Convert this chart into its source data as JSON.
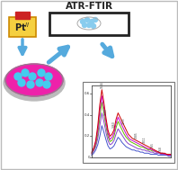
{
  "bg_color": "#ffffff",
  "title_text": "ATR-FTIR",
  "pt_box_color": "#f5d040",
  "arrow_color": "#55aadd",
  "dish_fill": "#ee22aa",
  "dish_edge": "#999999",
  "cell_color": "#44ccee",
  "spectra": {
    "lines": {
      "red": [
        0.05,
        0.09,
        0.16,
        0.3,
        0.5,
        0.64,
        0.52,
        0.38,
        0.26,
        0.2,
        0.22,
        0.26,
        0.36,
        0.42,
        0.38,
        0.34,
        0.3,
        0.26,
        0.22,
        0.2,
        0.18,
        0.17,
        0.16,
        0.15,
        0.14,
        0.13,
        0.12,
        0.11,
        0.1,
        0.09,
        0.08,
        0.07,
        0.06,
        0.05,
        0.04,
        0.04,
        0.04,
        0.03,
        0.03,
        0.03
      ],
      "magenta": [
        0.04,
        0.08,
        0.14,
        0.26,
        0.44,
        0.58,
        0.47,
        0.34,
        0.23,
        0.17,
        0.19,
        0.23,
        0.32,
        0.38,
        0.34,
        0.3,
        0.26,
        0.22,
        0.19,
        0.17,
        0.16,
        0.15,
        0.14,
        0.13,
        0.12,
        0.11,
        0.1,
        0.09,
        0.08,
        0.08,
        0.07,
        0.06,
        0.05,
        0.05,
        0.04,
        0.04,
        0.03,
        0.03,
        0.02,
        0.02
      ],
      "green": [
        0.04,
        0.07,
        0.12,
        0.22,
        0.38,
        0.52,
        0.42,
        0.3,
        0.2,
        0.15,
        0.16,
        0.2,
        0.28,
        0.34,
        0.3,
        0.26,
        0.22,
        0.19,
        0.17,
        0.15,
        0.14,
        0.13,
        0.12,
        0.11,
        0.1,
        0.1,
        0.09,
        0.08,
        0.07,
        0.07,
        0.06,
        0.06,
        0.05,
        0.05,
        0.04,
        0.04,
        0.03,
        0.03,
        0.02,
        0.02
      ],
      "purple": [
        0.03,
        0.06,
        0.1,
        0.18,
        0.3,
        0.42,
        0.34,
        0.24,
        0.16,
        0.12,
        0.13,
        0.16,
        0.22,
        0.27,
        0.24,
        0.21,
        0.18,
        0.15,
        0.13,
        0.12,
        0.11,
        0.1,
        0.09,
        0.08,
        0.08,
        0.07,
        0.07,
        0.06,
        0.06,
        0.05,
        0.05,
        0.04,
        0.04,
        0.04,
        0.03,
        0.03,
        0.03,
        0.02,
        0.02,
        0.02
      ],
      "blue": [
        0.02,
        0.04,
        0.07,
        0.12,
        0.2,
        0.3,
        0.24,
        0.17,
        0.11,
        0.08,
        0.09,
        0.11,
        0.15,
        0.19,
        0.17,
        0.14,
        0.12,
        0.1,
        0.09,
        0.08,
        0.07,
        0.07,
        0.06,
        0.06,
        0.05,
        0.05,
        0.04,
        0.04,
        0.04,
        0.03,
        0.03,
        0.03,
        0.03,
        0.02,
        0.02,
        0.02,
        0.02,
        0.02,
        0.01,
        0.01
      ]
    },
    "colors": [
      "#cc0000",
      "#cc00cc",
      "#66bb00",
      "#8844cc",
      "#4455cc"
    ],
    "line_order": [
      "blue",
      "purple",
      "green",
      "magenta",
      "red"
    ],
    "annotations": [
      {
        "xi": 5,
        "text": "1644"
      },
      {
        "xi": 7,
        "text": "1549"
      },
      {
        "xi": 11,
        "text": "1460"
      },
      {
        "xi": 16,
        "text": "1233"
      },
      {
        "xi": 22,
        "text": "1085"
      },
      {
        "xi": 26,
        "text": "1011"
      },
      {
        "xi": 30,
        "text": "965"
      },
      {
        "xi": 34,
        "text": "918"
      }
    ],
    "ylim": [
      0.0,
      0.68
    ],
    "yticks": [
      0.0,
      0.2,
      0.4,
      0.6
    ],
    "n": 40
  },
  "red_top": "#cc2222",
  "border_color": "#555555"
}
